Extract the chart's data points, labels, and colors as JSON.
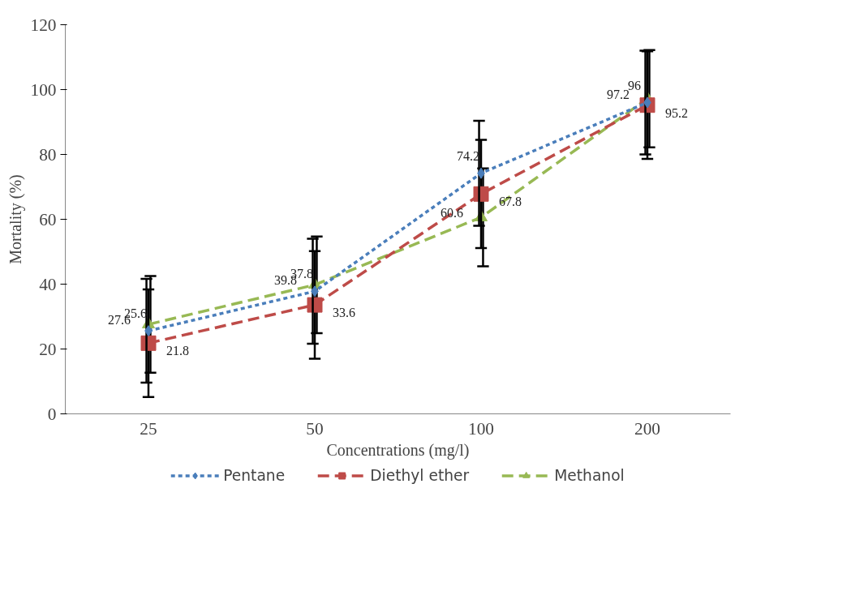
{
  "chart_data": {
    "type": "line",
    "xlabel": "Concentrations (mg/l)",
    "ylabel": "Mortality (%)",
    "categories": [
      "25",
      "50",
      "100",
      "200"
    ],
    "ylim": [
      0,
      120
    ],
    "yticks": [
      0,
      20,
      40,
      60,
      80,
      100,
      120
    ],
    "grid": false,
    "legend": "bottom",
    "data_labels": true,
    "series": [
      {
        "name": "Pentane",
        "color": "#4a7ebb",
        "marker": "diamond",
        "line_style": "dotted",
        "values": [
          25.6,
          37.8,
          74.2,
          96
        ],
        "errors": [
          16,
          16.2,
          16.2,
          16
        ]
      },
      {
        "name": "Diethyl ether",
        "color": "#be4b48",
        "marker": "square",
        "line_style": "dashed",
        "values": [
          21.8,
          33.6,
          67.8,
          95.2
        ],
        "errors": [
          16.6,
          16.6,
          16.7,
          16.6
        ]
      },
      {
        "name": "Methanol",
        "color": "#98b954",
        "marker": "triangle",
        "line_style": "dashed",
        "values": [
          27.6,
          39.8,
          60.6,
          97.2
        ],
        "errors": [
          14.9,
          14.9,
          15.1,
          15
        ]
      }
    ]
  }
}
